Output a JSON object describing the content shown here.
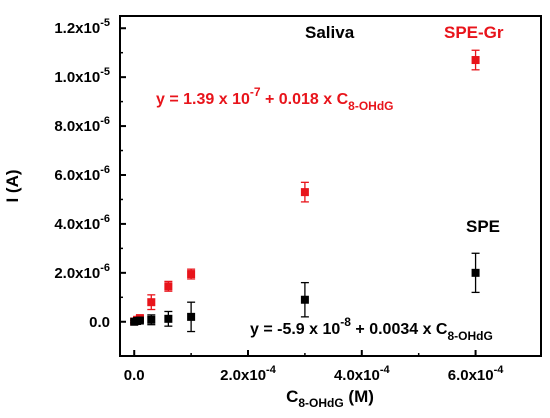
{
  "chart_data": {
    "type": "scatter",
    "title": "Saliva",
    "xlabel": "C",
    "xlabel_sub": "8-OHdG",
    "xlabel_unit": " (M)",
    "ylabel": "I (A)",
    "xlim": [
      -2.5e-05,
      0.000715
    ],
    "ylim": [
      -1.4e-06,
      1.25e-05
    ],
    "x_ticks": [
      {
        "value": 0,
        "label": "0.0"
      },
      {
        "value": 0.0002,
        "label": "2.0x10",
        "exp": "-4"
      },
      {
        "value": 0.0004,
        "label": "4.0x10",
        "exp": "-4"
      },
      {
        "value": 0.0006,
        "label": "6.0x10",
        "exp": "-4"
      }
    ],
    "y_ticks": [
      {
        "value": 0,
        "label": "0.0"
      },
      {
        "value": 2e-06,
        "label": "2.0x10",
        "exp": "-6"
      },
      {
        "value": 4e-06,
        "label": "4.0x10",
        "exp": "-6"
      },
      {
        "value": 6e-06,
        "label": "6.0x10",
        "exp": "-6"
      },
      {
        "value": 8e-06,
        "label": "8.0x10",
        "exp": "-6"
      },
      {
        "value": 1e-05,
        "label": "1.0x10",
        "exp": "-5"
      },
      {
        "value": 1.2e-05,
        "label": "1.2x10",
        "exp": "-5"
      }
    ],
    "series": [
      {
        "name": "SPE-Gr",
        "color": "#e8141b",
        "points": [
          {
            "x": 0.0,
            "y": 1e-08,
            "err": 8e-08
          },
          {
            "x": 5e-06,
            "y": 8e-08,
            "err": 1e-07
          },
          {
            "x": 1e-05,
            "y": 1.5e-07,
            "err": 1e-07
          },
          {
            "x": 3e-05,
            "y": 8e-07,
            "err": 3e-07
          },
          {
            "x": 6e-05,
            "y": 1.45e-06,
            "err": 2e-07
          },
          {
            "x": 0.0001,
            "y": 1.95e-06,
            "err": 2e-07
          },
          {
            "x": 0.0003,
            "y": 5.3e-06,
            "err": 4e-07
          },
          {
            "x": 0.0006,
            "y": 1.07e-05,
            "err": 4e-07
          }
        ]
      },
      {
        "name": "SPE",
        "color": "#000000",
        "points": [
          {
            "x": 0.0,
            "y": 0.0,
            "err": 4e-08
          },
          {
            "x": 5e-06,
            "y": 3e-08,
            "err": 6e-08
          },
          {
            "x": 1e-05,
            "y": 5e-08,
            "err": 6e-08
          },
          {
            "x": 3e-05,
            "y": 8e-08,
            "err": 2e-07
          },
          {
            "x": 6e-05,
            "y": 1.2e-07,
            "err": 3e-07
          },
          {
            "x": 0.0001,
            "y": 2e-07,
            "err": 6e-07
          },
          {
            "x": 0.0003,
            "y": 9e-07,
            "err": 7e-07
          },
          {
            "x": 0.0006,
            "y": 2e-06,
            "err": 8e-07
          }
        ]
      }
    ],
    "annotations": {
      "spe_gr_label": "SPE-Gr",
      "spe_label": "SPE",
      "eq_red_a": "y = 1.39 x 10",
      "eq_red_exp": "-7",
      "eq_red_b": " + 0.018 x C",
      "eq_red_sub": "8-OHdG",
      "eq_black_a": "y = -5.9 x 10",
      "eq_black_exp": "-8",
      "eq_black_b": " + 0.0034 x C",
      "eq_black_sub": "8-OHdG"
    },
    "grid": false,
    "legend": "none"
  }
}
